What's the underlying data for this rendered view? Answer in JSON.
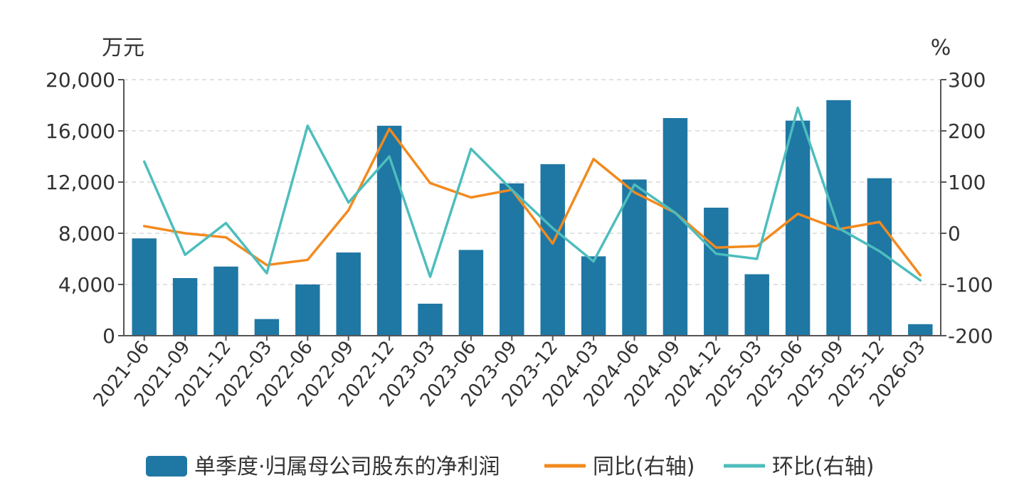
{
  "chart_data": {
    "type": "bar",
    "categories": [
      "2021-06",
      "2021-09",
      "2021-12",
      "2022-03",
      "2022-06",
      "2022-09",
      "2022-12",
      "2023-03",
      "2023-06",
      "2023-09",
      "2023-12",
      "2024-03",
      "2024-06",
      "2024-09",
      "2024-12",
      "2025-03",
      "2025-06",
      "2025-09",
      "2025-12",
      "2026-03"
    ],
    "series": [
      {
        "name": "单季度·归属母公司股东的净利润",
        "kind": "bar",
        "axis": "left",
        "color": "#1f77a4",
        "values": [
          7600,
          4500,
          5400,
          1300,
          4000,
          6500,
          16400,
          2500,
          6700,
          11900,
          13400,
          6200,
          12200,
          17000,
          10000,
          4800,
          16800,
          18400,
          12300,
          900
        ]
      },
      {
        "name": "同比(右轴)",
        "kind": "line",
        "axis": "right",
        "color": "#f28a1e",
        "values": [
          14,
          0,
          -8,
          -62,
          -52,
          45,
          204,
          98,
          70,
          85,
          -20,
          145,
          80,
          40,
          -28,
          -25,
          38,
          8,
          22,
          -82
        ]
      },
      {
        "name": "环比(右轴)",
        "kind": "line",
        "axis": "right",
        "color": "#4dbdbd",
        "values": [
          140,
          -42,
          20,
          -78,
          210,
          60,
          150,
          -85,
          165,
          85,
          10,
          -55,
          95,
          40,
          -40,
          -50,
          245,
          10,
          -35,
          -92
        ]
      }
    ],
    "y_left": {
      "unit_label": "万元",
      "range": [
        0,
        20000
      ],
      "ticks": [
        "20,000",
        "16,000",
        "12,000",
        "8,000",
        "4,000",
        "0"
      ],
      "tick_values": [
        20000,
        16000,
        12000,
        8000,
        4000,
        0
      ]
    },
    "y_right": {
      "unit_label": "%",
      "range": [
        -200,
        300
      ],
      "ticks": [
        "300",
        "200",
        "100",
        "0",
        "-100",
        "-200"
      ],
      "tick_values": [
        300,
        200,
        100,
        0,
        -100,
        -200
      ]
    },
    "grid": true,
    "legend_position": "bottom"
  }
}
